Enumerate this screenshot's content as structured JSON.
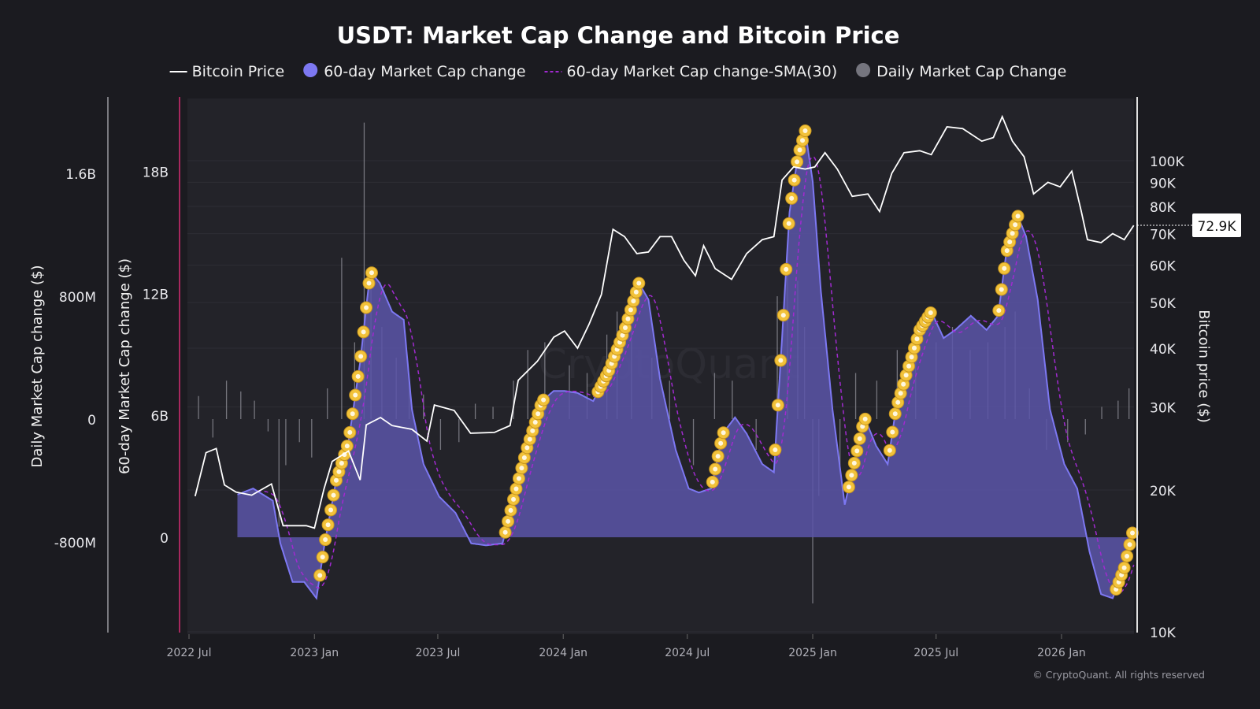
{
  "chart_data": {
    "type": "line",
    "title": "USDT: Market Cap Change and Bitcoin Price",
    "legend": {
      "placement": "top-center",
      "entries": [
        "Bitcoin Price",
        "60-day Market Cap change",
        "60-day Market Cap change-SMA(30)",
        "Daily Market Cap Change"
      ]
    },
    "colors": {
      "bitcoin": "#ffffff",
      "mc60": "#7d78f2",
      "mc60_fill": "#5a55a8",
      "sma": "#a12ad0",
      "daily": "#8a8a92",
      "markers": "#f2c23a",
      "background": "#1b1b20",
      "plot_bg": "#232329",
      "left_axis_line": "#a8285e"
    },
    "axes": {
      "daily": {
        "label": "Daily Market Cap change ($)",
        "ticks": [
          {
            "v": 1600000000,
            "t": "1.6B"
          },
          {
            "v": 800000000,
            "t": "800M"
          },
          {
            "v": 0,
            "t": "0"
          },
          {
            "v": -800000000,
            "t": "-800M"
          }
        ]
      },
      "mc60": {
        "label": "60-day Market Cap change ($)",
        "ticks": [
          {
            "v": 18,
            "t": "18B"
          },
          {
            "v": 12,
            "t": "12B"
          },
          {
            "v": 6,
            "t": "6B"
          },
          {
            "v": 0,
            "t": "0"
          }
        ]
      },
      "btc": {
        "label": "Bitcoin price ($)",
        "scale": "log",
        "ticks": [
          {
            "v": 100000,
            "t": "100K"
          },
          {
            "v": 90000,
            "t": "90K"
          },
          {
            "v": 80000,
            "t": "80K"
          },
          {
            "v": 70000,
            "t": "70K"
          },
          {
            "v": 60000,
            "t": "60K"
          },
          {
            "v": 50000,
            "t": "50K"
          },
          {
            "v": 40000,
            "t": "40K"
          },
          {
            "v": 30000,
            "t": "30K"
          },
          {
            "v": 20000,
            "t": "20K"
          },
          {
            "v": 10000,
            "t": "10K"
          }
        ],
        "current": "72.9K"
      },
      "x": {
        "ticks": [
          {
            "d": "2022-07-01",
            "t": "2022 Jul"
          },
          {
            "d": "2023-01-01",
            "t": "2023 Jan"
          },
          {
            "d": "2023-07-01",
            "t": "2023 Jul"
          },
          {
            "d": "2024-01-01",
            "t": "2024 Jan"
          },
          {
            "d": "2024-07-01",
            "t": "2024 Jul"
          },
          {
            "d": "2025-01-01",
            "t": "2025 Jan"
          },
          {
            "d": "2025-07-01",
            "t": "2025 Jul"
          },
          {
            "d": "2026-01-01",
            "t": "2026 Jan"
          }
        ]
      }
    },
    "series": [
      {
        "name": "60-day Market Cap change",
        "unit": "B USD",
        "points": [
          [
            "2022-09-10",
            2.1
          ],
          [
            "2022-10-03",
            2.4
          ],
          [
            "2022-11-01",
            1.8
          ],
          [
            "2022-11-12",
            -0.3
          ],
          [
            "2022-11-30",
            -2.2
          ],
          [
            "2022-12-17",
            -2.2
          ],
          [
            "2023-01-04",
            -3.0
          ],
          [
            "2023-01-16",
            -0.3
          ],
          [
            "2023-02-02",
            2.8
          ],
          [
            "2023-02-20",
            4.7
          ],
          [
            "2023-03-09",
            8.6
          ],
          [
            "2023-03-24",
            13.1
          ],
          [
            "2023-04-07",
            12.5
          ],
          [
            "2023-04-25",
            11.1
          ],
          [
            "2023-05-12",
            10.7
          ],
          [
            "2023-05-24",
            6.3
          ],
          [
            "2023-06-10",
            3.6
          ],
          [
            "2023-07-03",
            2.0
          ],
          [
            "2023-07-27",
            1.2
          ],
          [
            "2023-08-19",
            -0.3
          ],
          [
            "2023-09-10",
            -0.4
          ],
          [
            "2023-10-04",
            -0.3
          ],
          [
            "2023-10-21",
            2.0
          ],
          [
            "2023-11-08",
            4.3
          ],
          [
            "2023-12-01",
            6.7
          ],
          [
            "2023-12-18",
            7.2
          ],
          [
            "2024-01-03",
            7.2
          ],
          [
            "2024-01-22",
            7.1
          ],
          [
            "2024-02-14",
            6.7
          ],
          [
            "2024-03-08",
            8.2
          ],
          [
            "2024-03-31",
            10.2
          ],
          [
            "2024-04-21",
            12.5
          ],
          [
            "2024-05-05",
            11.7
          ],
          [
            "2024-05-22",
            7.8
          ],
          [
            "2024-06-14",
            4.3
          ],
          [
            "2024-07-03",
            2.4
          ],
          [
            "2024-07-18",
            2.2
          ],
          [
            "2024-08-05",
            2.4
          ],
          [
            "2024-08-22",
            5.1
          ],
          [
            "2024-09-09",
            5.9
          ],
          [
            "2024-09-26",
            5.1
          ],
          [
            "2024-10-19",
            3.6
          ],
          [
            "2024-11-05",
            3.2
          ],
          [
            "2024-11-17",
            9.8
          ],
          [
            "2024-11-28",
            16.0
          ],
          [
            "2024-12-10",
            18.7
          ],
          [
            "2024-12-21",
            20.0
          ],
          [
            "2025-01-01",
            17.5
          ],
          [
            "2025-01-13",
            12.1
          ],
          [
            "2025-01-30",
            6.3
          ],
          [
            "2025-02-17",
            1.6
          ],
          [
            "2025-02-28",
            3.2
          ],
          [
            "2025-03-18",
            5.9
          ],
          [
            "2025-04-04",
            4.5
          ],
          [
            "2025-04-21",
            3.6
          ],
          [
            "2025-05-03",
            6.3
          ],
          [
            "2025-05-20",
            8.2
          ],
          [
            "2025-06-07",
            10.2
          ],
          [
            "2025-06-24",
            11.1
          ],
          [
            "2025-07-12",
            9.8
          ],
          [
            "2025-07-29",
            10.2
          ],
          [
            "2025-08-21",
            10.9
          ],
          [
            "2025-09-13",
            10.2
          ],
          [
            "2025-09-30",
            10.9
          ],
          [
            "2025-10-12",
            14.0
          ],
          [
            "2025-10-29",
            15.8
          ],
          [
            "2025-11-10",
            14.8
          ],
          [
            "2025-11-27",
            11.7
          ],
          [
            "2025-12-15",
            6.3
          ],
          [
            "2026-01-05",
            3.6
          ],
          [
            "2026-01-24",
            2.4
          ],
          [
            "2026-02-11",
            -0.7
          ],
          [
            "2026-02-28",
            -2.8
          ],
          [
            "2026-03-17",
            -3.0
          ],
          [
            "2026-04-03",
            -1.5
          ],
          [
            "2026-04-17",
            0.5
          ]
        ]
      },
      {
        "name": "Bitcoin Price",
        "unit": "USD",
        "points": [
          [
            "2022-07-10",
            19400
          ],
          [
            "2022-07-26",
            24000
          ],
          [
            "2022-08-10",
            24500
          ],
          [
            "2022-08-22",
            20500
          ],
          [
            "2022-09-08",
            19800
          ],
          [
            "2022-10-01",
            19500
          ],
          [
            "2022-10-30",
            20600
          ],
          [
            "2022-11-16",
            16800
          ],
          [
            "2022-12-20",
            16800
          ],
          [
            "2023-01-01",
            16600
          ],
          [
            "2023-01-15",
            20100
          ],
          [
            "2023-01-27",
            23000
          ],
          [
            "2023-02-20",
            24200
          ],
          [
            "2023-03-09",
            21000
          ],
          [
            "2023-03-18",
            27500
          ],
          [
            "2023-04-08",
            28500
          ],
          [
            "2023-04-25",
            27400
          ],
          [
            "2023-05-24",
            26900
          ],
          [
            "2023-06-15",
            25400
          ],
          [
            "2023-06-26",
            30300
          ],
          [
            "2023-07-25",
            29500
          ],
          [
            "2023-08-18",
            26400
          ],
          [
            "2023-09-22",
            26500
          ],
          [
            "2023-10-15",
            27400
          ],
          [
            "2023-10-27",
            34200
          ],
          [
            "2023-11-24",
            37500
          ],
          [
            "2023-12-18",
            42200
          ],
          [
            "2024-01-03",
            43500
          ],
          [
            "2024-01-22",
            40000
          ],
          [
            "2024-02-08",
            45000
          ],
          [
            "2024-02-26",
            52000
          ],
          [
            "2024-03-14",
            71500
          ],
          [
            "2024-03-31",
            69000
          ],
          [
            "2024-04-18",
            63500
          ],
          [
            "2024-05-05",
            64000
          ],
          [
            "2024-05-22",
            69000
          ],
          [
            "2024-06-08",
            69000
          ],
          [
            "2024-06-26",
            61500
          ],
          [
            "2024-07-13",
            57000
          ],
          [
            "2024-07-25",
            66000
          ],
          [
            "2024-08-11",
            59000
          ],
          [
            "2024-09-04",
            56000
          ],
          [
            "2024-09-26",
            63500
          ],
          [
            "2024-10-19",
            68000
          ],
          [
            "2024-11-05",
            69000
          ],
          [
            "2024-11-17",
            91000
          ],
          [
            "2024-12-04",
            97000
          ],
          [
            "2024-12-21",
            96000
          ],
          [
            "2025-01-04",
            97000
          ],
          [
            "2025-01-19",
            104000
          ],
          [
            "2025-02-06",
            96000
          ],
          [
            "2025-02-28",
            84000
          ],
          [
            "2025-03-23",
            85000
          ],
          [
            "2025-04-09",
            78000
          ],
          [
            "2025-04-27",
            94000
          ],
          [
            "2025-05-15",
            104000
          ],
          [
            "2025-06-07",
            105000
          ],
          [
            "2025-06-24",
            103000
          ],
          [
            "2025-07-17",
            118000
          ],
          [
            "2025-08-09",
            117000
          ],
          [
            "2025-09-06",
            110000
          ],
          [
            "2025-09-23",
            112000
          ],
          [
            "2025-10-06",
            124000
          ],
          [
            "2025-10-21",
            110000
          ],
          [
            "2025-11-07",
            102000
          ],
          [
            "2025-11-21",
            85000
          ],
          [
            "2025-12-12",
            90000
          ],
          [
            "2025-12-30",
            88000
          ],
          [
            "2026-01-16",
            95000
          ],
          [
            "2026-01-30",
            78000
          ],
          [
            "2026-02-08",
            68000
          ],
          [
            "2026-02-28",
            67000
          ],
          [
            "2026-03-17",
            70000
          ],
          [
            "2026-04-03",
            68000
          ],
          [
            "2026-04-17",
            72900
          ]
        ]
      },
      {
        "name": "Daily Market Cap Change",
        "unit": "USD",
        "points": [
          [
            "2022-07-15",
            150000000
          ],
          [
            "2022-08-05",
            -120000000
          ],
          [
            "2022-08-25",
            250000000
          ],
          [
            "2022-09-15",
            180000000
          ],
          [
            "2022-10-05",
            120000000
          ],
          [
            "2022-10-25",
            -80000000
          ],
          [
            "2022-11-10",
            -700000000
          ],
          [
            "2022-11-20",
            -300000000
          ],
          [
            "2022-12-10",
            -150000000
          ],
          [
            "2022-12-28",
            -250000000
          ],
          [
            "2023-01-20",
            200000000
          ],
          [
            "2023-02-10",
            1050000000
          ],
          [
            "2023-03-01",
            500000000
          ],
          [
            "2023-03-15",
            1930000000
          ],
          [
            "2023-03-25",
            900000000
          ],
          [
            "2023-04-10",
            600000000
          ],
          [
            "2023-05-01",
            400000000
          ],
          [
            "2023-05-20",
            250000000
          ],
          [
            "2023-06-10",
            160000000
          ],
          [
            "2023-07-05",
            -200000000
          ],
          [
            "2023-08-01",
            -150000000
          ],
          [
            "2023-08-25",
            100000000
          ],
          [
            "2023-09-20",
            80000000
          ],
          [
            "2023-10-20",
            250000000
          ],
          [
            "2023-11-10",
            450000000
          ],
          [
            "2023-12-05",
            500000000
          ],
          [
            "2024-01-10",
            350000000
          ],
          [
            "2024-02-05",
            300000000
          ],
          [
            "2024-03-05",
            550000000
          ],
          [
            "2024-03-20",
            700000000
          ],
          [
            "2024-04-10",
            600000000
          ],
          [
            "2024-05-10",
            400000000
          ],
          [
            "2024-06-05",
            250000000
          ],
          [
            "2024-07-10",
            -300000000
          ],
          [
            "2024-08-10",
            300000000
          ],
          [
            "2024-09-05",
            250000000
          ],
          [
            "2024-10-10",
            -200000000
          ],
          [
            "2024-11-10",
            800000000
          ],
          [
            "2024-11-25",
            1100000000
          ],
          [
            "2024-12-10",
            900000000
          ],
          [
            "2024-12-20",
            600000000
          ],
          [
            "2025-01-01",
            -1200000000
          ],
          [
            "2025-01-10",
            -500000000
          ],
          [
            "2025-02-10",
            -300000000
          ],
          [
            "2025-03-05",
            300000000
          ],
          [
            "2025-04-05",
            250000000
          ],
          [
            "2025-05-05",
            450000000
          ],
          [
            "2025-06-01",
            550000000
          ],
          [
            "2025-07-01",
            500000000
          ],
          [
            "2025-07-25",
            600000000
          ],
          [
            "2025-08-20",
            450000000
          ],
          [
            "2025-09-15",
            500000000
          ],
          [
            "2025-10-10",
            600000000
          ],
          [
            "2025-10-25",
            700000000
          ],
          [
            "2025-11-15",
            200000000
          ],
          [
            "2025-12-10",
            -200000000
          ],
          [
            "2026-01-10",
            -150000000
          ],
          [
            "2026-02-05",
            -100000000
          ],
          [
            "2026-03-01",
            80000000
          ],
          [
            "2026-03-25",
            120000000
          ],
          [
            "2026-04-10",
            200000000
          ]
        ]
      }
    ]
  },
  "watermark": "CryptoQuant",
  "copyright": "© CryptoQuant. All rights reserved"
}
